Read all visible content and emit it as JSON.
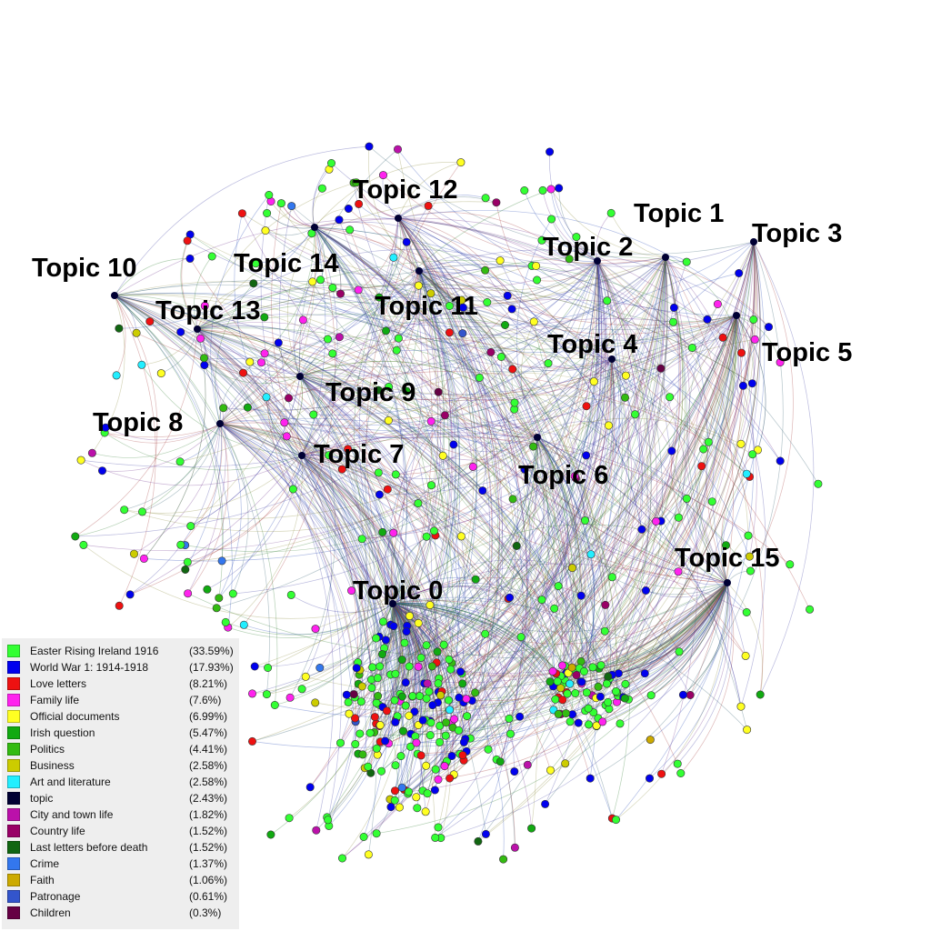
{
  "topics": [
    {
      "label": "Topic 0"
    },
    {
      "label": "Topic 1"
    },
    {
      "label": "Topic 2"
    },
    {
      "label": "Topic 3"
    },
    {
      "label": "Topic 4"
    },
    {
      "label": "Topic 5"
    },
    {
      "label": "Topic 6"
    },
    {
      "label": "Topic 7"
    },
    {
      "label": "Topic 8"
    },
    {
      "label": "Topic 9"
    },
    {
      "label": "Topic 10"
    },
    {
      "label": "Topic 11"
    },
    {
      "label": "Topic 12"
    },
    {
      "label": "Topic 13"
    },
    {
      "label": "Topic 14"
    },
    {
      "label": "Topic 15"
    }
  ],
  "legend": [
    {
      "label": "Easter Rising Ireland 1916",
      "percent": "(33.59%)",
      "color": "#33ff33"
    },
    {
      "label": "World War 1: 1914-1918",
      "percent": "(17.93%)",
      "color": "#0000ee"
    },
    {
      "label": "Love letters",
      "percent": "(8.21%)",
      "color": "#ee1111"
    },
    {
      "label": "Family life",
      "percent": "(7.6%)",
      "color": "#ff22ee"
    },
    {
      "label": "Official documents",
      "percent": "(6.99%)",
      "color": "#ffff22"
    },
    {
      "label": "Irish question",
      "percent": "(5.47%)",
      "color": "#11aa11"
    },
    {
      "label": "Politics",
      "percent": "(4.41%)",
      "color": "#33bb11"
    },
    {
      "label": "Business",
      "percent": "(2.58%)",
      "color": "#cccc00"
    },
    {
      "label": "Art and literature",
      "percent": "(2.58%)",
      "color": "#22eeff"
    },
    {
      "label": "topic",
      "percent": "(2.43%)",
      "color": "#000033"
    },
    {
      "label": "City and town life",
      "percent": "(1.82%)",
      "color": "#bb11aa"
    },
    {
      "label": "Country life",
      "percent": "(1.52%)",
      "color": "#990066"
    },
    {
      "label": "Last letters before death",
      "percent": "(1.52%)",
      "color": "#116611"
    },
    {
      "label": "Crime",
      "percent": "(1.37%)",
      "color": "#3377ee"
    },
    {
      "label": "Faith",
      "percent": "(1.06%)",
      "color": "#ccaa00"
    },
    {
      "label": "Patronage",
      "percent": "(0.61%)",
      "color": "#3355cc"
    },
    {
      "label": "Children",
      "percent": "(0.3%)",
      "color": "#660044"
    }
  ]
}
